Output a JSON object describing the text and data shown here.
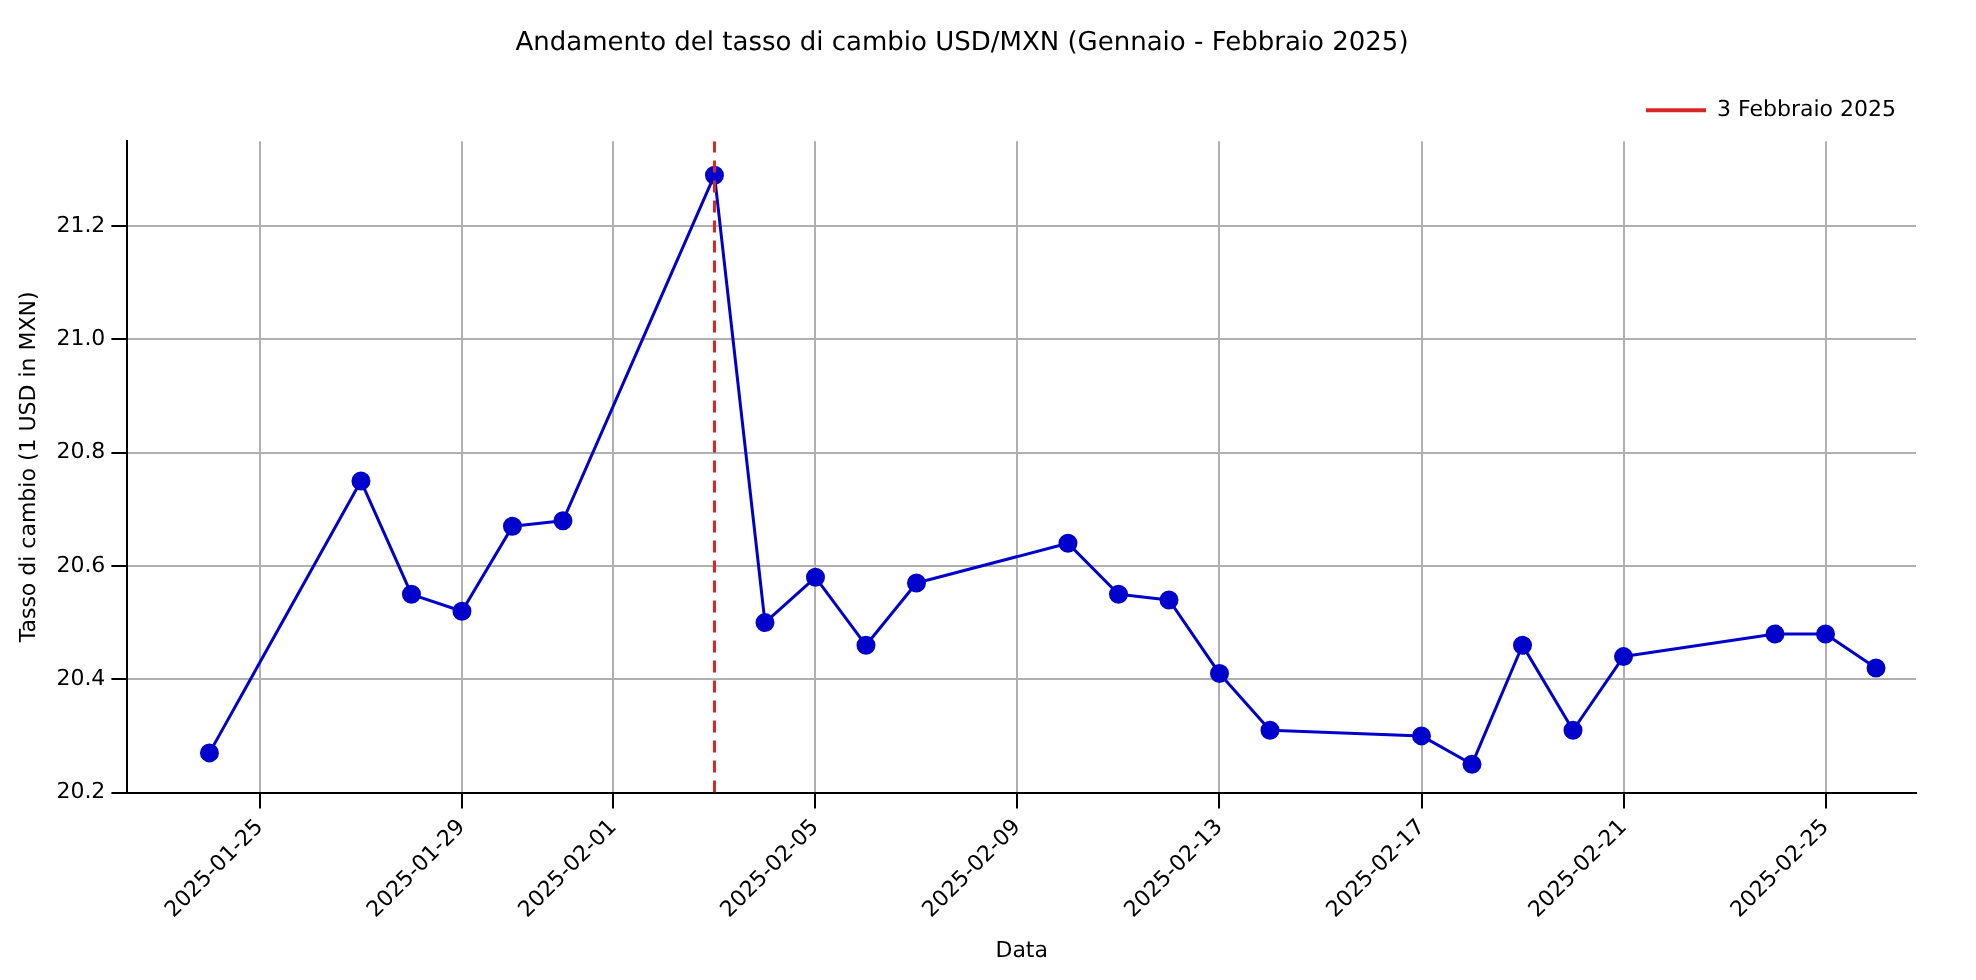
{
  "chart_data": {
    "type": "line",
    "title": "Andamento del tasso di cambio USD/MXN (Gennaio - Febbraio 2025)",
    "xlabel": "Data",
    "ylabel": "Tasso di cambio (1 USD in MXN)",
    "x": [
      "2025-01-24",
      "2025-01-27",
      "2025-01-28",
      "2025-01-29",
      "2025-01-30",
      "2025-01-31",
      "2025-02-03",
      "2025-02-04",
      "2025-02-05",
      "2025-02-06",
      "2025-02-07",
      "2025-02-10",
      "2025-02-11",
      "2025-02-12",
      "2025-02-13",
      "2025-02-14",
      "2025-02-17",
      "2025-02-18",
      "2025-02-19",
      "2025-02-20",
      "2025-02-21",
      "2025-02-24",
      "2025-02-25",
      "2025-02-26"
    ],
    "series": [
      {
        "color": "#0000cd",
        "values": [
          20.27,
          20.75,
          20.55,
          20.52,
          20.67,
          20.68,
          21.29,
          20.5,
          20.58,
          20.46,
          20.57,
          20.64,
          20.55,
          20.54,
          20.41,
          20.31,
          20.3,
          20.25,
          20.46,
          20.31,
          20.44,
          20.48,
          20.48,
          20.42
        ]
      }
    ],
    "xlim": [
      "2025-01-22T09:00",
      "2025-02-26T19:00"
    ],
    "xticks": [
      "2025-01-25",
      "2025-01-29",
      "2025-02-01",
      "2025-02-05",
      "2025-02-09",
      "2025-02-13",
      "2025-02-17",
      "2025-02-21",
      "2025-02-25"
    ],
    "ylim": [
      20.2,
      21.35
    ],
    "yticks": [
      20.2,
      20.4,
      20.6,
      20.8,
      {
        "value": 21,
        "label": "21.0"
      },
      21.2
    ],
    "ref_lines": [
      {
        "axis": "x",
        "value": "2025-02-03",
        "label": "3 Febbraio 2025",
        "color": "#d62728",
        "line_style": "dashed"
      }
    ],
    "grid": true,
    "legend": "top right",
    "marker": "circle",
    "line_style": "solid"
  }
}
